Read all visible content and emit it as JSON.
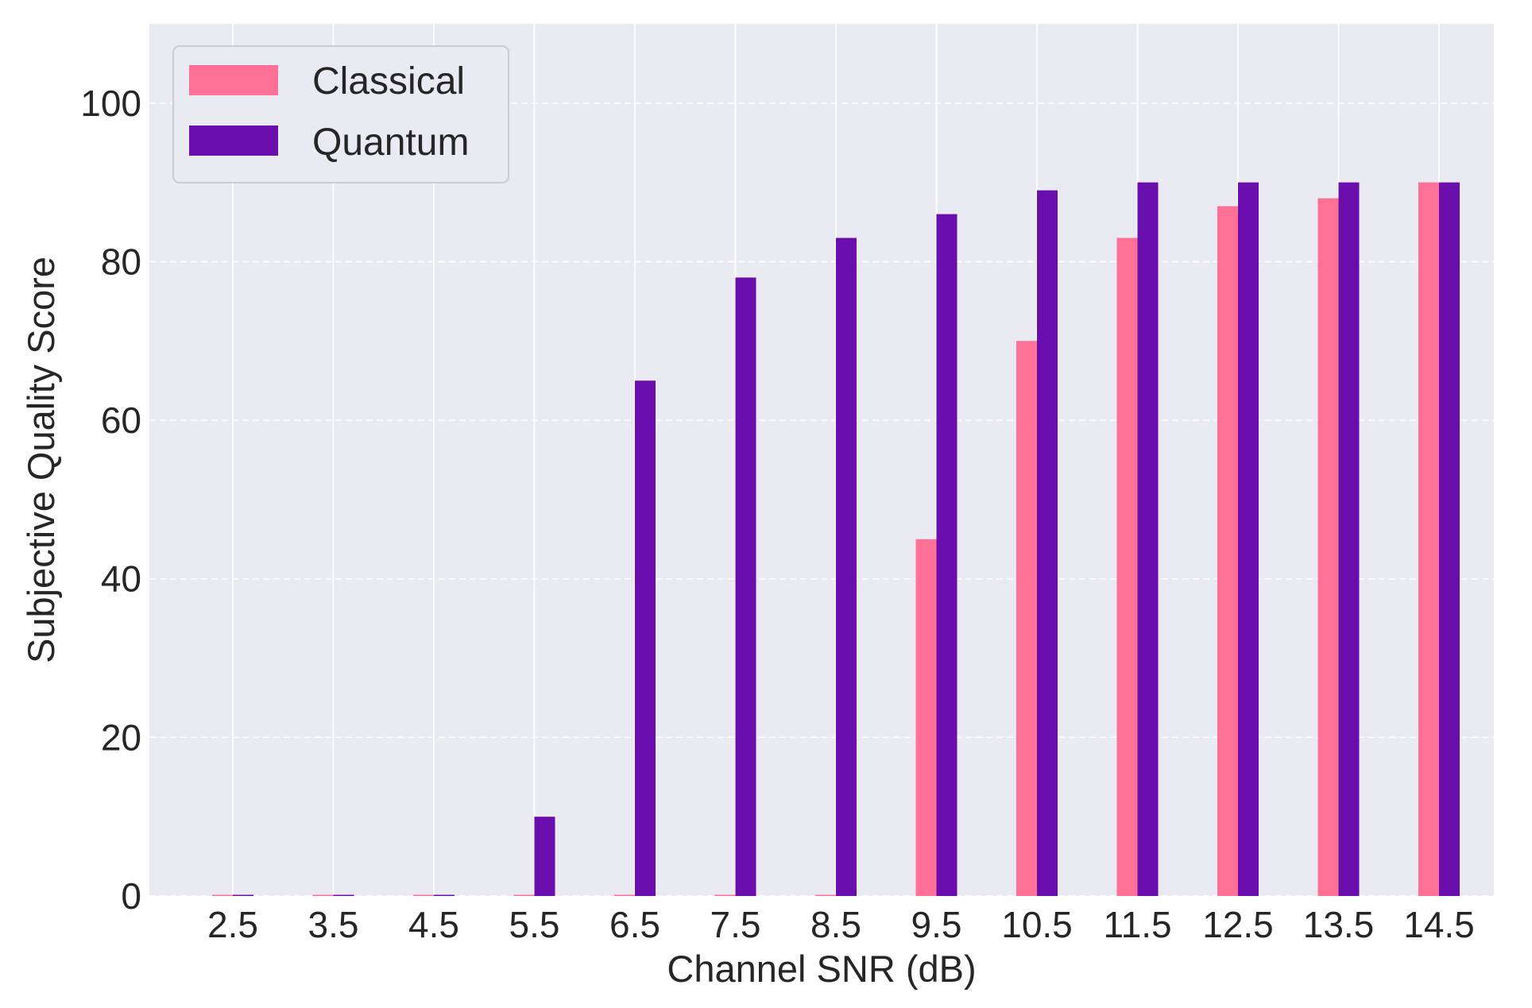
{
  "chart_data": {
    "type": "bar",
    "title": "",
    "xlabel": "Channel SNR (dB)",
    "ylabel": "Subjective Quality Score",
    "categories": [
      "2.5",
      "3.5",
      "4.5",
      "5.5",
      "6.5",
      "7.5",
      "8.5",
      "9.5",
      "10.5",
      "11.5",
      "12.5",
      "13.5",
      "14.5"
    ],
    "series": [
      {
        "name": "Classical",
        "color": "#ff7096",
        "values": [
          0,
          0,
          0,
          0,
          0,
          0,
          0,
          45,
          70,
          83,
          87,
          88,
          90
        ]
      },
      {
        "name": "Quantum",
        "color": "#6a0dad",
        "values": [
          0,
          0,
          0,
          10,
          65,
          78,
          83,
          86,
          89,
          90,
          90,
          90,
          90
        ]
      }
    ],
    "ylim": [
      0,
      110
    ],
    "yticks": [
      0,
      20,
      40,
      60,
      80,
      100
    ],
    "grid": true,
    "legend_position": "top-left",
    "background": "#eaeaf2"
  }
}
